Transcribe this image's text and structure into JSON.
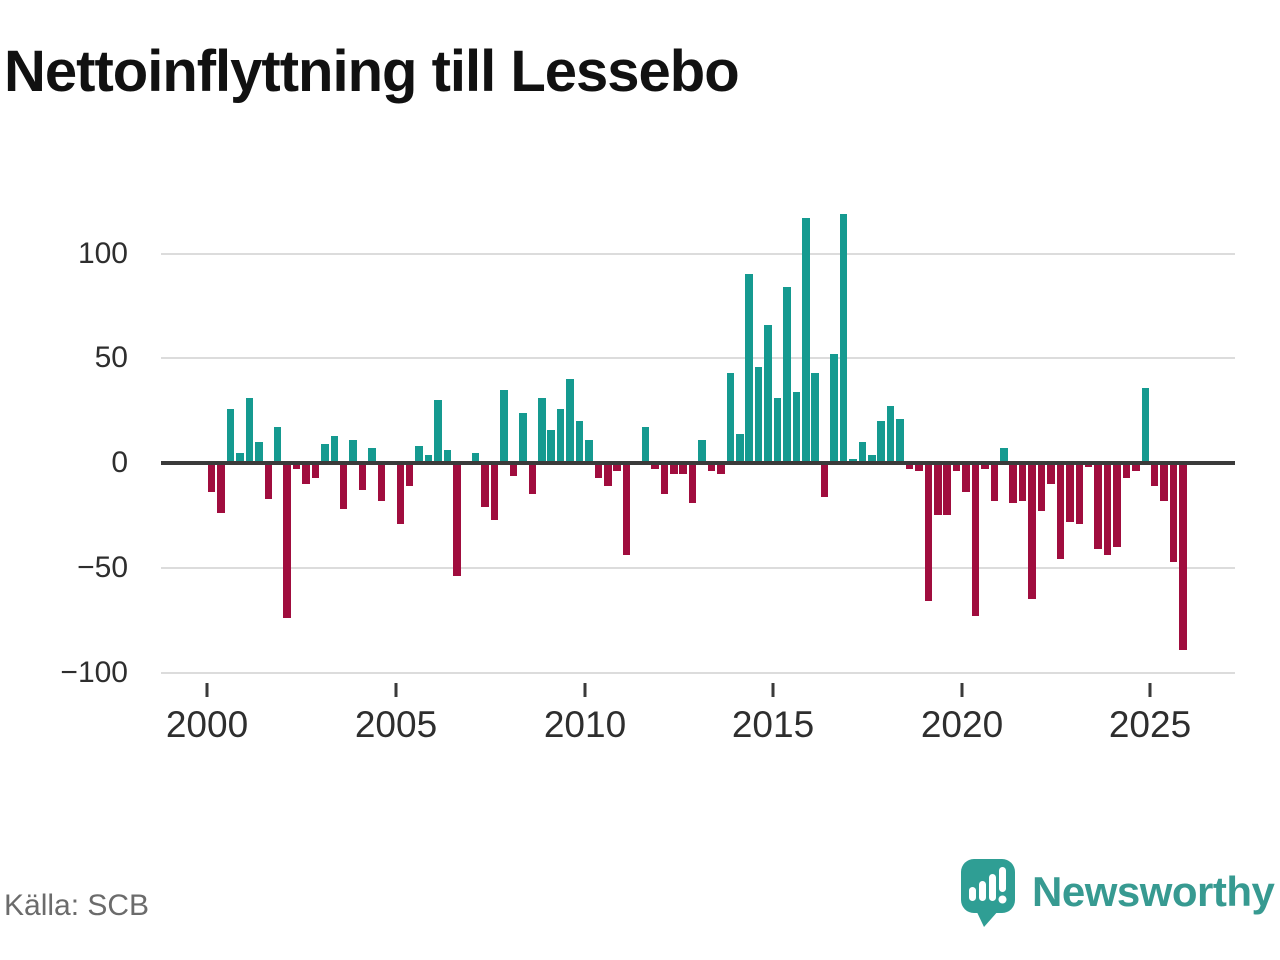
{
  "title": "Nettoinflyttning till Lessebo",
  "source": "Källa: SCB",
  "branding": {
    "name": "Newsworthy",
    "logo_icon": "newsworthy-speech-bubble-chart-icon"
  },
  "colors": {
    "positive": "#159a90",
    "negative": "#a00d3e",
    "axis": "#3a3a3a",
    "grid": "#dcdcdc",
    "tick_label": "#2e2e2e",
    "brand": "#379a91",
    "source_text": "#6b6b6b"
  },
  "chart_data": {
    "type": "bar",
    "title": "Nettoinflyttning till Lessebo",
    "xlabel": "",
    "ylabel": "",
    "ylim": [
      -100,
      120
    ],
    "grid": "horizontal",
    "legend": "none",
    "bar_colors": {
      "positive": "#159a90",
      "negative": "#a00d3e"
    },
    "y_axis": {
      "ticks": [
        {
          "label": "100",
          "value": 100
        },
        {
          "label": "50",
          "value": 50
        },
        {
          "label": "0",
          "value": 0
        },
        {
          "label": "−50",
          "value": -50
        },
        {
          "label": "−100",
          "value": -100
        }
      ]
    },
    "x_axis": {
      "ticks": [
        {
          "label": "2000"
        },
        {
          "label": "2005"
        },
        {
          "label": "2010"
        },
        {
          "label": "2015"
        },
        {
          "label": "2020"
        },
        {
          "label": "2025"
        }
      ]
    },
    "x": [
      "2000 Q1",
      "2000 Q2",
      "2000 Q3",
      "2000 Q4",
      "2001 Q1",
      "2001 Q2",
      "2001 Q3",
      "2001 Q4",
      "2002 Q1",
      "2002 Q2",
      "2002 Q3",
      "2002 Q4",
      "2003 Q1",
      "2003 Q2",
      "2003 Q3",
      "2003 Q4",
      "2004 Q1",
      "2004 Q2",
      "2004 Q3",
      "2004 Q4",
      "2005 Q1",
      "2005 Q2",
      "2005 Q3",
      "2005 Q4",
      "2006 Q1",
      "2006 Q2",
      "2006 Q3",
      "2006 Q4",
      "2007 Q1",
      "2007 Q2",
      "2007 Q3",
      "2007 Q4",
      "2008 Q1",
      "2008 Q2",
      "2008 Q3",
      "2008 Q4",
      "2009 Q1",
      "2009 Q2",
      "2009 Q3",
      "2009 Q4",
      "2010 Q1",
      "2010 Q2",
      "2010 Q3",
      "2010 Q4",
      "2011 Q1",
      "2011 Q2",
      "2011 Q3",
      "2011 Q4",
      "2012 Q1",
      "2012 Q2",
      "2012 Q3",
      "2012 Q4",
      "2013 Q1",
      "2013 Q2",
      "2013 Q3",
      "2013 Q4",
      "2014 Q1",
      "2014 Q2",
      "2014 Q3",
      "2014 Q4",
      "2015 Q1",
      "2015 Q2",
      "2015 Q3",
      "2015 Q4",
      "2016 Q1",
      "2016 Q2",
      "2016 Q3",
      "2016 Q4",
      "2017 Q1",
      "2017 Q2",
      "2017 Q3",
      "2017 Q4",
      "2018 Q1",
      "2018 Q2",
      "2018 Q3",
      "2018 Q4",
      "2019 Q1",
      "2019 Q2",
      "2019 Q3",
      "2019 Q4",
      "2020 Q1",
      "2020 Q2",
      "2020 Q3",
      "2020 Q4",
      "2021 Q1",
      "2021 Q2",
      "2021 Q3",
      "2021 Q4",
      "2022 Q1",
      "2022 Q2",
      "2022 Q3",
      "2022 Q4",
      "2023 Q1",
      "2023 Q2",
      "2023 Q3",
      "2023 Q4",
      "2024 Q1",
      "2024 Q2",
      "2024 Q3",
      "2024 Q4",
      "2025 Q1",
      "2025 Q2",
      "2025 Q3",
      "2025 Q4"
    ],
    "values": [
      -14,
      -24,
      26,
      5,
      31,
      10,
      -17,
      17,
      -74,
      -3,
      -10,
      -7,
      9,
      13,
      -22,
      11,
      -13,
      7,
      -18,
      0,
      -29,
      -11,
      8,
      4,
      30,
      6,
      -54,
      0,
      5,
      -21,
      -27,
      35,
      -6,
      24,
      -15,
      31,
      16,
      26,
      40,
      20,
      11,
      -7,
      -11,
      -4,
      -44,
      0,
      17,
      -3,
      -15,
      -5,
      -5,
      -19,
      11,
      -4,
      -5,
      43,
      14,
      90,
      46,
      66,
      31,
      84,
      34,
      117,
      43,
      -16,
      52,
      119,
      2,
      10,
      4,
      20,
      27,
      21,
      -3,
      -4,
      -66,
      -25,
      -25,
      -4,
      -14,
      -73,
      -3,
      -18,
      7,
      -19,
      -18,
      -65,
      -23,
      -10,
      -46,
      -28,
      -29,
      -2,
      -41,
      -44,
      -40,
      -7,
      -4,
      36,
      -11,
      -18,
      -47,
      -89
    ]
  }
}
